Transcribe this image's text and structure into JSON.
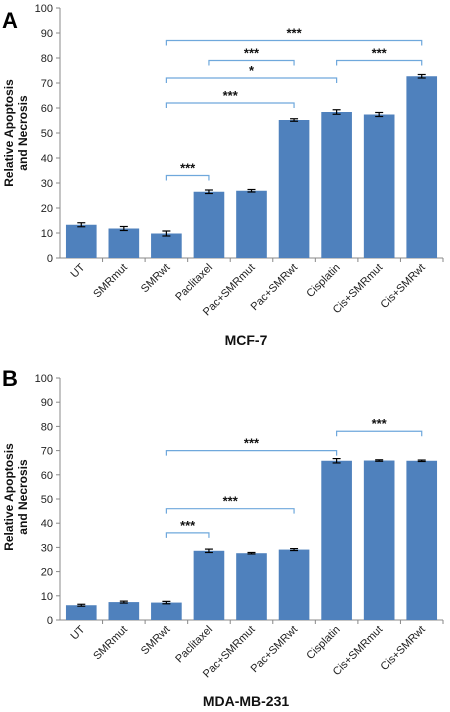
{
  "chart_data": [
    {
      "type": "bar",
      "panel_label": "A",
      "title": "MCF-7",
      "ylabel_line1": "Relative Apoptosis",
      "ylabel_line2": "and Necrosis",
      "ylim": [
        0,
        100
      ],
      "yticks": [
        0,
        10,
        20,
        30,
        40,
        50,
        60,
        70,
        80,
        90,
        100
      ],
      "categories": [
        "UT",
        "SMRmut",
        "SMRwt",
        "Paclitaxel",
        "Pac+SMRmut",
        "Pac+SMRwt",
        "Cisplatin",
        "Cis+SMRmut",
        "Cis+SMRwt"
      ],
      "values": [
        13.3,
        11.8,
        9.8,
        26.5,
        26.9,
        55.2,
        58.4,
        57.4,
        72.7
      ],
      "errors": [
        0.8,
        0.8,
        1.0,
        0.7,
        0.5,
        0.5,
        0.9,
        0.8,
        0.7
      ],
      "color": "#4f81bd",
      "significance": [
        {
          "from": 2,
          "to": 3,
          "label": "***",
          "y": 33
        },
        {
          "from": 2,
          "to": 5,
          "label": "***",
          "y": 62
        },
        {
          "from": 2,
          "to": 6,
          "label": "*",
          "y": 72
        },
        {
          "from": 3,
          "to": 5,
          "label": "***",
          "y": 79
        },
        {
          "from": 6,
          "to": 8,
          "label": "***",
          "y": 79
        },
        {
          "from": 2,
          "to": 8,
          "label": "***",
          "y": 87
        }
      ],
      "grid": false,
      "legend": "none"
    },
    {
      "type": "bar",
      "panel_label": "B",
      "title": "MDA-MB-231",
      "ylabel_line1": "Relative Apoptosis",
      "ylabel_line2": "and Necrosis",
      "ylim": [
        0,
        100
      ],
      "yticks": [
        0,
        10,
        20,
        30,
        40,
        50,
        60,
        70,
        80,
        90,
        100
      ],
      "categories": [
        "UT",
        "SMRmut",
        "SMRwt",
        "Paclitaxel",
        "Pac+SMRmut",
        "Pac+SMRwt",
        "Cisplatin",
        "Cis+SMRmut",
        "Cis+SMRwt"
      ],
      "values": [
        6.1,
        7.4,
        7.2,
        28.6,
        27.6,
        29.1,
        65.8,
        65.9,
        65.8
      ],
      "errors": [
        0.4,
        0.4,
        0.5,
        0.7,
        0.3,
        0.4,
        0.9,
        0.3,
        0.3
      ],
      "color": "#4f81bd",
      "significance": [
        {
          "from": 2,
          "to": 3,
          "label": "***",
          "y": 36
        },
        {
          "from": 2,
          "to": 5,
          "label": "***",
          "y": 46
        },
        {
          "from": 2,
          "to": 6,
          "label": "***",
          "y": 70
        },
        {
          "from": 6,
          "to": 8,
          "label": "***",
          "y": 78
        }
      ],
      "grid": false,
      "legend": "none"
    }
  ],
  "colors": {
    "bar": "#4f81bd",
    "bracket": "#6fa8dc",
    "axis": "#888888"
  }
}
